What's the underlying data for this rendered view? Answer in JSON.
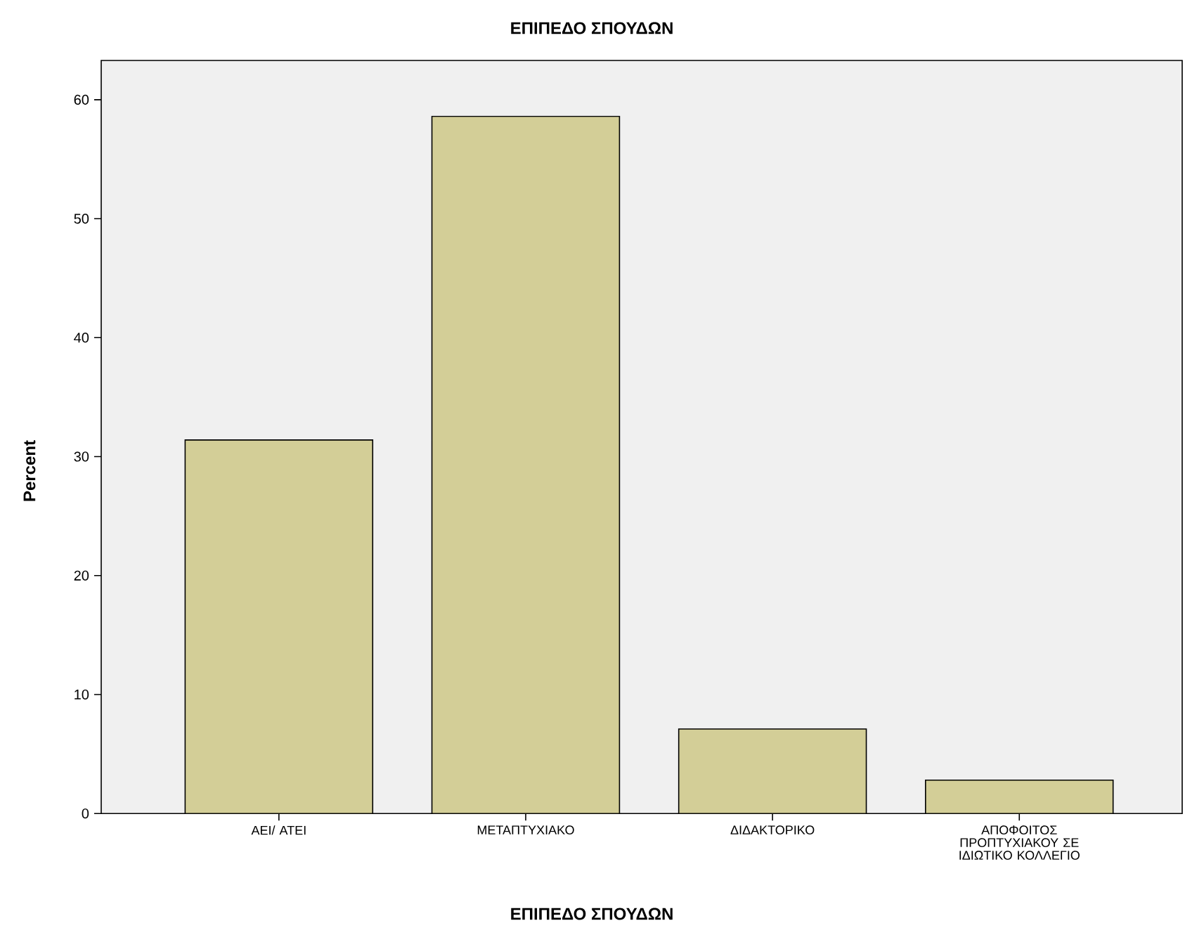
{
  "chart_data": {
    "type": "bar",
    "title": "ΕΠΙΠΕΔΟ ΣΠΟΥΔΩΝ",
    "xlabel": "ΕΠΙΠΕΔΟ ΣΠΟΥΔΩΝ",
    "ylabel": "Percent",
    "categories": [
      "ΑΕΙ/ ΑΤΕΙ",
      "ΜΕΤΑΠΤΥΧΙΑΚΟ",
      "ΔΙΔΑΚΤΟΡΙΚΟ",
      "ΑΠΟΦΟΙΤΟΣ ΠΡΟΠΤΥΧΙΑΚΟΥ ΣΕ ΙΔΙΩΤΙΚΟ ΚΟΛΛΕΓΙΟ"
    ],
    "values": [
      31.4,
      58.6,
      7.1,
      2.8
    ],
    "color": "#d3ce97",
    "ylim": [
      0,
      63.3
    ],
    "yticks": [
      0,
      10,
      20,
      30,
      40,
      50,
      60
    ]
  }
}
